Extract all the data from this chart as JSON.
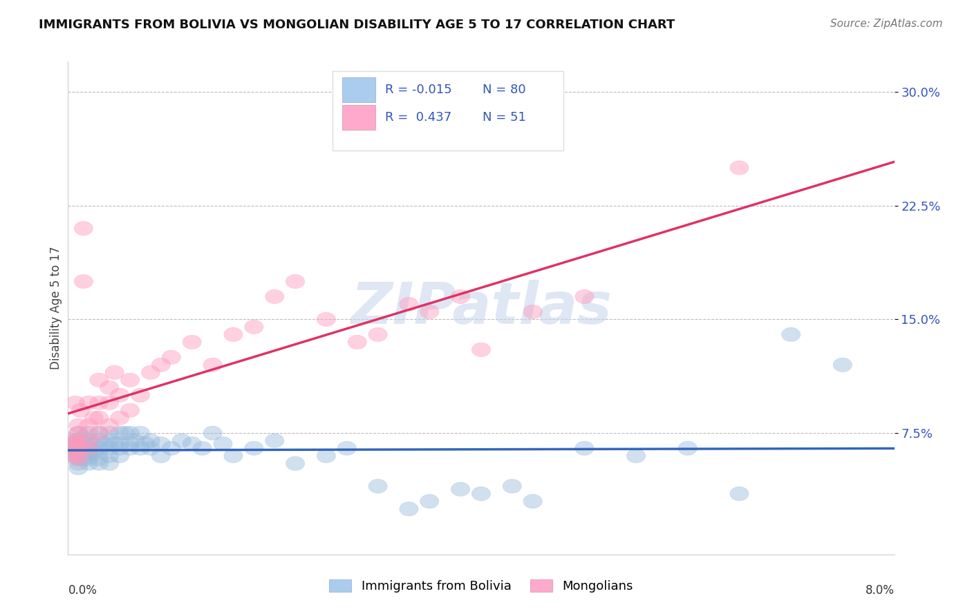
{
  "title": "IMMIGRANTS FROM BOLIVIA VS MONGOLIAN DISABILITY AGE 5 TO 17 CORRELATION CHART",
  "source": "Source: ZipAtlas.com",
  "ylabel": "Disability Age 5 to 17",
  "color_blue": "#99BBDD",
  "color_pink": "#FF99BB",
  "color_line_blue": "#3366BB",
  "color_line_pink": "#DD3366",
  "color_blue_legend": "#AACCEE",
  "color_pink_legend": "#FFAACC",
  "watermark": "ZIPatlas",
  "watermark_color": "#C8D8EC",
  "legend_r1": "R = -0.015",
  "legend_n1": "N = 80",
  "legend_r2": "R =  0.437",
  "legend_n2": "N = 51",
  "legend_text_color": "#3355BB",
  "blue_x": [
    0.0005,
    0.0006,
    0.0007,
    0.0008,
    0.0009,
    0.001,
    0.001,
    0.001,
    0.001,
    0.001,
    0.001,
    0.001,
    0.0012,
    0.0013,
    0.0015,
    0.0015,
    0.0017,
    0.002,
    0.002,
    0.002,
    0.002,
    0.002,
    0.002,
    0.002,
    0.0022,
    0.0025,
    0.003,
    0.003,
    0.003,
    0.003,
    0.003,
    0.003,
    0.0035,
    0.004,
    0.004,
    0.004,
    0.004,
    0.004,
    0.0045,
    0.005,
    0.005,
    0.005,
    0.005,
    0.0055,
    0.006,
    0.006,
    0.006,
    0.0065,
    0.007,
    0.007,
    0.0075,
    0.008,
    0.008,
    0.009,
    0.009,
    0.01,
    0.011,
    0.012,
    0.013,
    0.014,
    0.015,
    0.016,
    0.018,
    0.02,
    0.022,
    0.025,
    0.027,
    0.03,
    0.033,
    0.035,
    0.038,
    0.04,
    0.043,
    0.045,
    0.05,
    0.055,
    0.06,
    0.065,
    0.07,
    0.075
  ],
  "blue_y": [
    0.065,
    0.068,
    0.07,
    0.06,
    0.058,
    0.065,
    0.07,
    0.062,
    0.075,
    0.055,
    0.06,
    0.052,
    0.068,
    0.063,
    0.072,
    0.058,
    0.065,
    0.062,
    0.068,
    0.075,
    0.055,
    0.06,
    0.065,
    0.058,
    0.07,
    0.063,
    0.065,
    0.07,
    0.058,
    0.062,
    0.075,
    0.055,
    0.068,
    0.065,
    0.075,
    0.06,
    0.055,
    0.07,
    0.068,
    0.075,
    0.068,
    0.065,
    0.06,
    0.075,
    0.075,
    0.068,
    0.065,
    0.07,
    0.075,
    0.065,
    0.068,
    0.07,
    0.065,
    0.068,
    0.06,
    0.065,
    0.07,
    0.068,
    0.065,
    0.075,
    0.068,
    0.06,
    0.065,
    0.07,
    0.055,
    0.06,
    0.065,
    0.04,
    0.025,
    0.03,
    0.038,
    0.035,
    0.04,
    0.03,
    0.065,
    0.06,
    0.065,
    0.035,
    0.14,
    0.12
  ],
  "pink_x": [
    0.0004,
    0.0005,
    0.0006,
    0.0007,
    0.0008,
    0.001,
    0.001,
    0.001,
    0.001,
    0.001,
    0.001,
    0.0012,
    0.0015,
    0.0015,
    0.002,
    0.002,
    0.002,
    0.002,
    0.0025,
    0.003,
    0.003,
    0.003,
    0.003,
    0.004,
    0.004,
    0.004,
    0.0045,
    0.005,
    0.005,
    0.006,
    0.006,
    0.007,
    0.008,
    0.009,
    0.01,
    0.012,
    0.014,
    0.016,
    0.018,
    0.02,
    0.022,
    0.025,
    0.028,
    0.03,
    0.033,
    0.035,
    0.038,
    0.04,
    0.045,
    0.05,
    0.065
  ],
  "pink_y": [
    0.065,
    0.06,
    0.07,
    0.095,
    0.068,
    0.06,
    0.065,
    0.07,
    0.08,
    0.075,
    0.058,
    0.09,
    0.175,
    0.21,
    0.065,
    0.07,
    0.08,
    0.095,
    0.085,
    0.075,
    0.095,
    0.11,
    0.085,
    0.08,
    0.095,
    0.105,
    0.115,
    0.085,
    0.1,
    0.09,
    0.11,
    0.1,
    0.115,
    0.12,
    0.125,
    0.135,
    0.12,
    0.14,
    0.145,
    0.165,
    0.175,
    0.15,
    0.135,
    0.14,
    0.16,
    0.155,
    0.165,
    0.13,
    0.155,
    0.165,
    0.25
  ]
}
